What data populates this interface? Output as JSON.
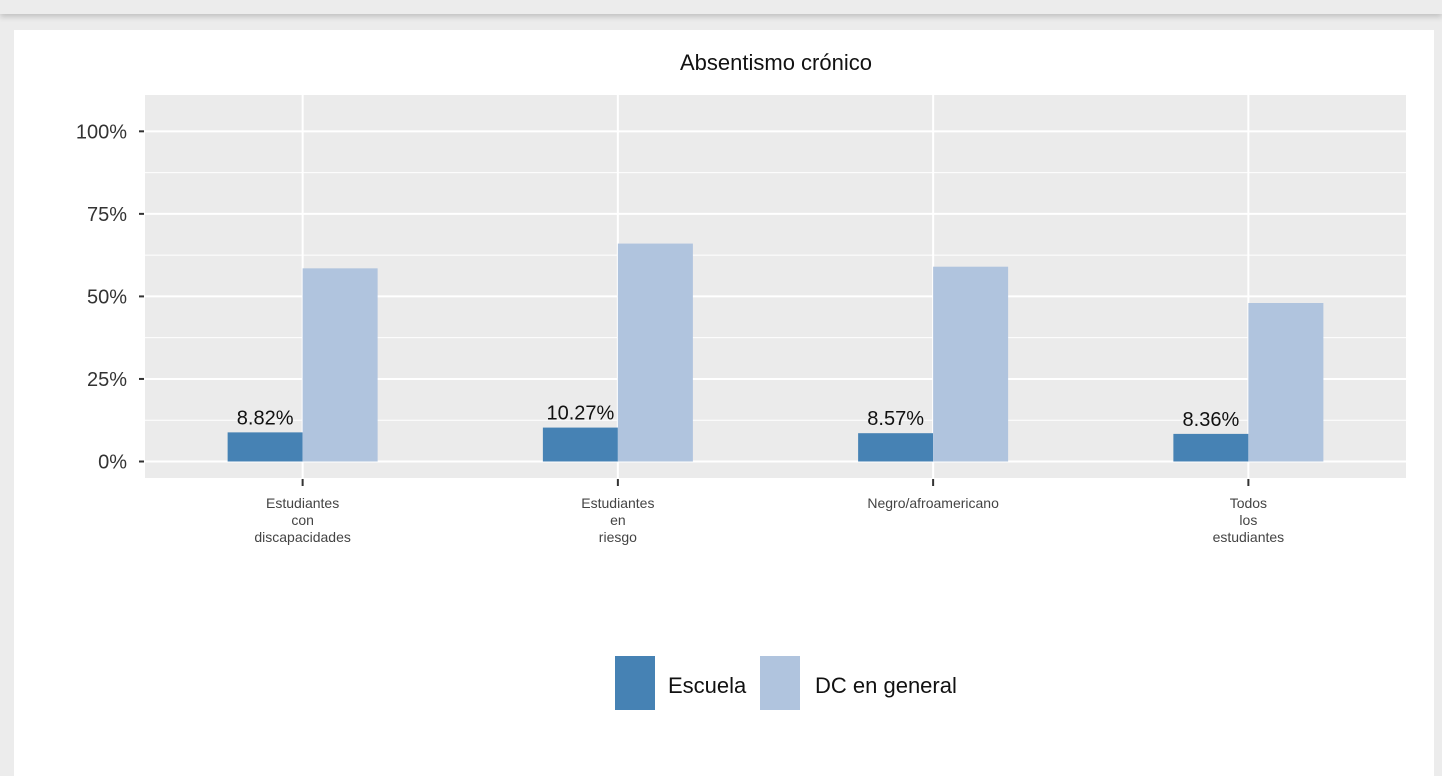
{
  "chart_data": {
    "type": "bar",
    "title": "Absentismo crónico",
    "categories": [
      [
        "Estudiantes",
        "con",
        "discapacidades"
      ],
      [
        "Estudiantes",
        "en",
        "riesgo"
      ],
      [
        "Negro/afroamericano"
      ],
      [
        "Todos",
        "los",
        "estudiantes"
      ]
    ],
    "series": [
      {
        "name": "Escuela",
        "color": "#4682b4",
        "values": [
          8.82,
          10.27,
          8.57,
          8.36
        ],
        "labels": [
          "8.82%",
          "10.27%",
          "8.57%",
          "8.36%"
        ]
      },
      {
        "name": "DC en general",
        "color": "#b0c4de",
        "values": [
          58.5,
          66,
          59,
          48
        ]
      }
    ],
    "y_ticks": [
      {
        "value": 0,
        "label": "0%"
      },
      {
        "value": 25,
        "label": "25%"
      },
      {
        "value": 50,
        "label": "50%"
      },
      {
        "value": 75,
        "label": "75%"
      },
      {
        "value": 100,
        "label": "100%"
      }
    ],
    "ylim": [
      -5,
      111
    ],
    "grid": true,
    "legend_position": "bottom"
  },
  "colors": {
    "panel_background": "#ebebeb",
    "grid": "#ffffff"
  }
}
